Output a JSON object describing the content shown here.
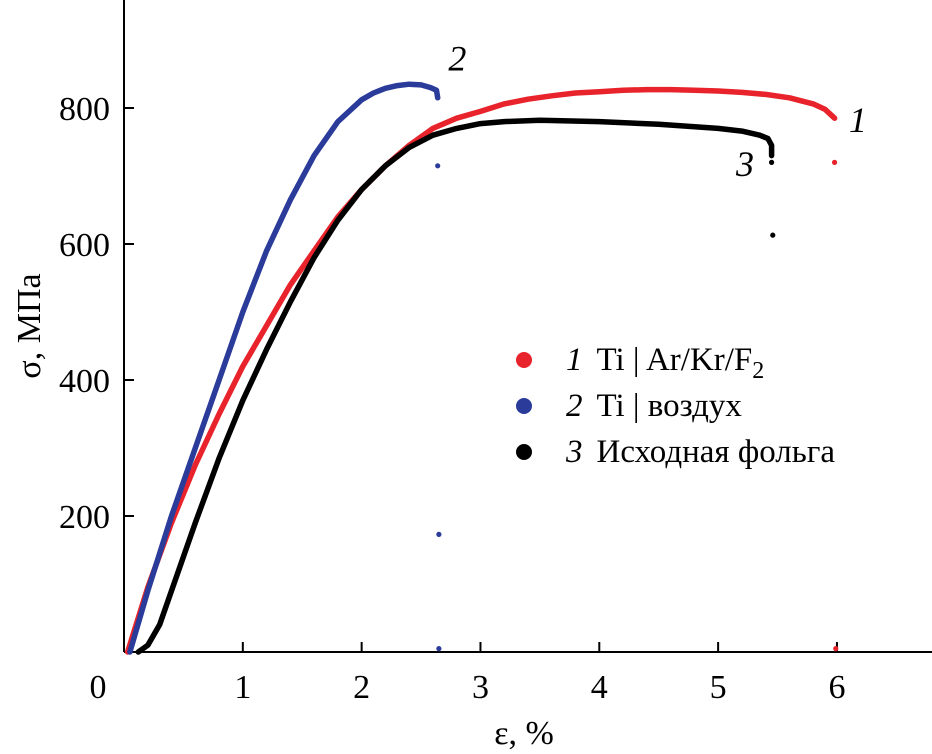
{
  "chart_data": {
    "type": "line",
    "title": "",
    "xlabel": "ε, %",
    "ylabel": "σ, МПа",
    "xlim": [
      0,
      6.8
    ],
    "ylim": [
      0,
      950
    ],
    "grid": false,
    "x_ticks": [
      {
        "value": 0,
        "label": "0"
      },
      {
        "value": 1,
        "label": "1"
      },
      {
        "value": 2,
        "label": "2"
      },
      {
        "value": 3,
        "label": "3"
      },
      {
        "value": 4,
        "label": "4"
      },
      {
        "value": 5,
        "label": "5"
      },
      {
        "value": 6,
        "label": "6"
      }
    ],
    "y_ticks": [
      {
        "value": 200,
        "label": "200"
      },
      {
        "value": 400,
        "label": "400"
      },
      {
        "value": 600,
        "label": "600"
      },
      {
        "value": 800,
        "label": "800"
      }
    ],
    "legend_position": "center-right",
    "series": [
      {
        "id": "1",
        "label_number": "1",
        "label_prefix": "Ti | Ar/Kr/F",
        "label_sub": "2",
        "name": "Ti | Ar/Kr/F₂",
        "color": "#e8232b",
        "curve_label": "1",
        "curve_label_at": [
          6.1,
          765
        ],
        "x": [
          0.03,
          0.2,
          0.4,
          0.6,
          0.8,
          1.0,
          1.2,
          1.4,
          1.6,
          1.8,
          2.0,
          2.2,
          2.4,
          2.6,
          2.8,
          3.0,
          3.2,
          3.4,
          3.6,
          3.8,
          4.0,
          4.2,
          4.4,
          4.6,
          4.8,
          5.0,
          5.2,
          5.4,
          5.6,
          5.8,
          5.9,
          5.98
        ],
        "y": [
          0,
          95,
          190,
          275,
          350,
          420,
          480,
          540,
          590,
          640,
          680,
          715,
          745,
          770,
          785,
          795,
          806,
          813,
          818,
          822,
          824,
          826,
          827,
          827,
          826,
          825,
          823,
          820,
          815,
          806,
          798,
          785
        ],
        "points": [
          [
            5.98,
            720
          ],
          [
            5.99,
            5
          ]
        ]
      },
      {
        "id": "2",
        "label_number": "2",
        "label_prefix": "Ti | воздух",
        "label_sub": "",
        "name": "Ti | воздух",
        "color": "#2a3b9a",
        "curve_label": "2",
        "curve_label_at": [
          2.73,
          855
        ],
        "x": [
          0.05,
          0.2,
          0.4,
          0.6,
          0.8,
          1.0,
          1.2,
          1.4,
          1.6,
          1.8,
          2.0,
          2.1,
          2.2,
          2.3,
          2.4,
          2.5,
          2.58,
          2.63,
          2.64
        ],
        "y": [
          0,
          90,
          200,
          300,
          400,
          500,
          590,
          665,
          730,
          780,
          812,
          822,
          829,
          833,
          835,
          834,
          830,
          826,
          815
        ],
        "points": [
          [
            2.64,
            715
          ],
          [
            2.65,
            173
          ],
          [
            2.65,
            5
          ]
        ]
      },
      {
        "id": "3",
        "label_number": "3",
        "label_prefix": "Исходная фольга",
        "label_sub": "",
        "name": "Исходная фольга",
        "color": "#000000",
        "curve_label": "3",
        "curve_label_at": [
          5.15,
          700
        ],
        "x": [
          0.12,
          0.2,
          0.3,
          0.4,
          0.6,
          0.8,
          1.0,
          1.2,
          1.4,
          1.6,
          1.8,
          2.0,
          2.2,
          2.4,
          2.6,
          2.8,
          3.0,
          3.2,
          3.5,
          4.0,
          4.5,
          5.0,
          5.2,
          5.35,
          5.42,
          5.45,
          5.45
        ],
        "y": [
          0,
          10,
          40,
          90,
          190,
          285,
          370,
          445,
          515,
          580,
          635,
          680,
          715,
          742,
          760,
          770,
          777,
          780,
          782,
          780,
          776,
          770,
          766,
          760,
          755,
          745,
          730
        ],
        "points": [
          [
            5.45,
            720
          ],
          [
            5.46,
            613
          ]
        ]
      }
    ]
  }
}
